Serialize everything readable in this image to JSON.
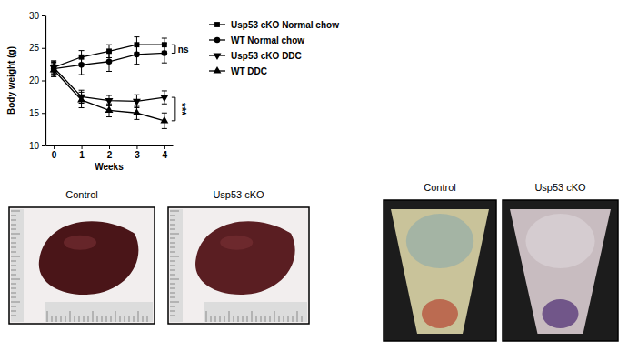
{
  "chart_data": {
    "type": "line",
    "x": [
      0,
      1,
      2,
      3,
      4
    ],
    "xlim": [
      -0.3,
      4.3
    ],
    "xticks": [
      0,
      1,
      2,
      3,
      4
    ],
    "ylim": [
      10,
      30
    ],
    "yticks": [
      10,
      15,
      20,
      25,
      30
    ],
    "x_label": "Weeks",
    "y_label": "Body weight (g)",
    "legend": "right",
    "series": [
      {
        "name": "Usp53 cKO Normal chow",
        "color": "#000000",
        "marker": "square",
        "line_style": "solid",
        "values": [
          22.0,
          23.6,
          24.5,
          25.5,
          25.5
        ],
        "errors": [
          1.0,
          1.0,
          1.0,
          1.2,
          1.0
        ]
      },
      {
        "name": "WT Normal chow",
        "color": "#000000",
        "marker": "circle",
        "line_style": "solid",
        "values": [
          21.8,
          22.4,
          22.9,
          24.0,
          24.2
        ],
        "errors": [
          1.2,
          1.5,
          1.5,
          1.5,
          1.5
        ]
      },
      {
        "name": "Usp53 cKO DDC",
        "color": "#000000",
        "marker": "triangle-down",
        "line_style": "solid",
        "values": [
          22.0,
          17.5,
          16.9,
          16.8,
          17.4
        ],
        "errors": [
          0.8,
          1.0,
          0.8,
          1.0,
          1.0
        ]
      },
      {
        "name": "WT DDC",
        "color": "#000000",
        "marker": "triangle",
        "line_style": "solid",
        "values": [
          21.6,
          17.0,
          15.4,
          15.0,
          13.8
        ],
        "errors": [
          1.0,
          1.2,
          1.0,
          1.0,
          1.2
        ]
      }
    ],
    "annotations": [
      "ns",
      "***"
    ]
  },
  "photos": [
    {
      "labels": [
        "Control",
        "Usp53 cKO"
      ]
    },
    {
      "labels": [
        "Control",
        "Usp53 cKO"
      ]
    }
  ]
}
